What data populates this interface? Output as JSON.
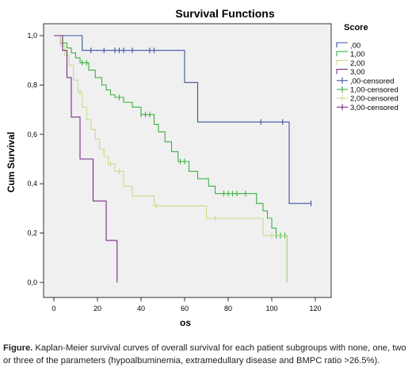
{
  "chart_data": {
    "type": "line",
    "subtype": "kaplan-meier step",
    "title": "Survival Functions",
    "xlabel": "os",
    "ylabel": "Cum Survival",
    "xlim": [
      0,
      120
    ],
    "ylim": [
      0,
      1.0
    ],
    "xticks": [
      "0",
      "20",
      "40",
      "60",
      "80",
      "100",
      "120"
    ],
    "yticks": [
      "0,0",
      "0,2",
      "0,4",
      "0,6",
      "0,8",
      "1,0"
    ],
    "grid": false,
    "legend_title": "Score",
    "legend_position": "right",
    "legend": [
      {
        "label": ",00",
        "kind": "line",
        "color": "#3a53a4"
      },
      {
        "label": "1,00",
        "kind": "line",
        "color": "#3cb043"
      },
      {
        "label": "2,00",
        "kind": "line",
        "color": "#c5dc8a"
      },
      {
        "label": "3,00",
        "kind": "line",
        "color": "#7a2a88"
      },
      {
        "label": ",00-censored",
        "kind": "censor",
        "color": "#3a53a4"
      },
      {
        "label": "1,00-censored",
        "kind": "censor",
        "color": "#3cb043"
      },
      {
        "label": "2,00-censored",
        "kind": "censor",
        "color": "#c5dc8a"
      },
      {
        "label": "3,00-censored",
        "kind": "censor",
        "color": "#7a2a88"
      }
    ],
    "series": [
      {
        "name": ",00",
        "color": "#3a53a4",
        "steps": [
          [
            0,
            1.0
          ],
          [
            13,
            0.94
          ],
          [
            60,
            0.81
          ],
          [
            66,
            0.65
          ],
          [
            108,
            0.32
          ],
          [
            118,
            0.32
          ]
        ],
        "censored": [
          [
            17,
            0.94
          ],
          [
            23,
            0.94
          ],
          [
            28,
            0.94
          ],
          [
            30,
            0.94
          ],
          [
            32,
            0.94
          ],
          [
            36,
            0.94
          ],
          [
            44,
            0.94
          ],
          [
            46,
            0.94
          ],
          [
            95,
            0.65
          ],
          [
            105,
            0.65
          ],
          [
            118,
            0.32
          ]
        ]
      },
      {
        "name": "1,00",
        "color": "#3cb043",
        "steps": [
          [
            0,
            1.0
          ],
          [
            3,
            0.97
          ],
          [
            6,
            0.95
          ],
          [
            8,
            0.93
          ],
          [
            10,
            0.91
          ],
          [
            12,
            0.89
          ],
          [
            16,
            0.86
          ],
          [
            19,
            0.83
          ],
          [
            22,
            0.8
          ],
          [
            24,
            0.78
          ],
          [
            26,
            0.76
          ],
          [
            28,
            0.75
          ],
          [
            32,
            0.73
          ],
          [
            36,
            0.71
          ],
          [
            40,
            0.68
          ],
          [
            46,
            0.64
          ],
          [
            48,
            0.61
          ],
          [
            51,
            0.57
          ],
          [
            54,
            0.53
          ],
          [
            57,
            0.49
          ],
          [
            62,
            0.45
          ],
          [
            66,
            0.42
          ],
          [
            71,
            0.39
          ],
          [
            74,
            0.36
          ],
          [
            93,
            0.32
          ],
          [
            96,
            0.29
          ],
          [
            98,
            0.26
          ],
          [
            100,
            0.22
          ],
          [
            102,
            0.19
          ],
          [
            107,
            0.0
          ]
        ],
        "censored": [
          [
            4,
            0.97
          ],
          [
            13,
            0.89
          ],
          [
            15,
            0.89
          ],
          [
            30,
            0.75
          ],
          [
            40,
            0.68
          ],
          [
            42,
            0.68
          ],
          [
            44,
            0.68
          ],
          [
            58,
            0.49
          ],
          [
            60,
            0.49
          ],
          [
            78,
            0.36
          ],
          [
            80,
            0.36
          ],
          [
            82,
            0.36
          ],
          [
            84,
            0.36
          ],
          [
            88,
            0.36
          ],
          [
            102,
            0.19
          ],
          [
            104,
            0.19
          ],
          [
            106,
            0.19
          ]
        ]
      },
      {
        "name": "2,00",
        "color": "#c5dc8a",
        "steps": [
          [
            0,
            1.0
          ],
          [
            3,
            0.96
          ],
          [
            5,
            0.92
          ],
          [
            7,
            0.88
          ],
          [
            9,
            0.82
          ],
          [
            11,
            0.77
          ],
          [
            13,
            0.71
          ],
          [
            15,
            0.66
          ],
          [
            17,
            0.62
          ],
          [
            19,
            0.58
          ],
          [
            21,
            0.54
          ],
          [
            23,
            0.51
          ],
          [
            25,
            0.48
          ],
          [
            28,
            0.45
          ],
          [
            32,
            0.39
          ],
          [
            36,
            0.35
          ],
          [
            46,
            0.31
          ],
          [
            70,
            0.26
          ],
          [
            96,
            0.19
          ],
          [
            107,
            0.0
          ]
        ],
        "censored": [
          [
            12,
            0.77
          ],
          [
            26,
            0.48
          ],
          [
            30,
            0.45
          ],
          [
            47,
            0.31
          ],
          [
            74,
            0.26
          ],
          [
            100,
            0.19
          ]
        ]
      },
      {
        "name": "3,00",
        "color": "#7a2a88",
        "steps": [
          [
            0,
            1.0
          ],
          [
            4,
            0.94
          ],
          [
            6,
            0.83
          ],
          [
            8,
            0.67
          ],
          [
            12,
            0.5
          ],
          [
            18,
            0.33
          ],
          [
            24,
            0.17
          ],
          [
            29,
            0.0
          ]
        ],
        "censored": []
      }
    ]
  },
  "caption": {
    "label": "Figure.",
    "text": " Kaplan-Meier survival curves of overall survival for each patient subgroups with none, one, two or three of the parameters (hypoalbuminemia, extramedullary disease and BMPC ratio >26.5%)."
  }
}
